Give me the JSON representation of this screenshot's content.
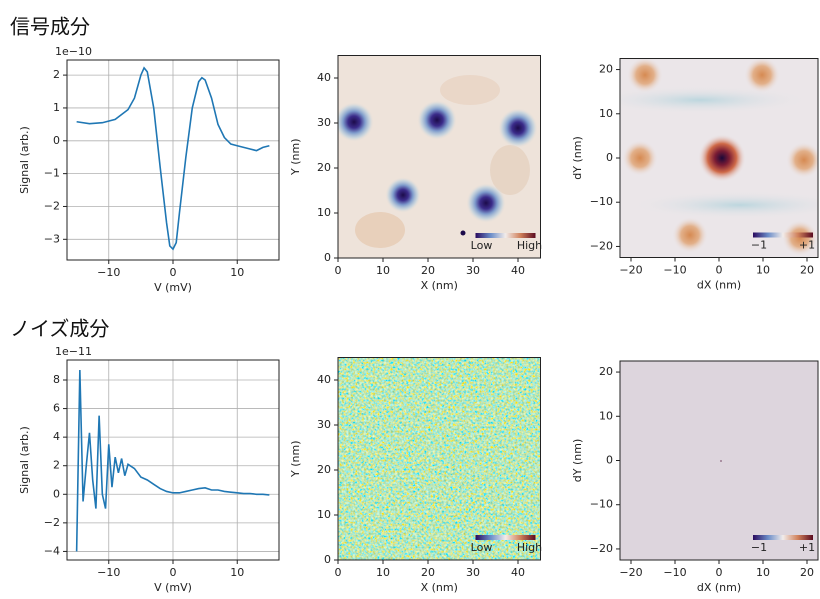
{
  "section_titles": [
    "信号成分",
    "ノイズ成分"
  ],
  "chart_data": [
    {
      "type": "line",
      "xlabel": "V (mV)",
      "ylabel": "Signal (arb.)",
      "offset_label": "1e−10",
      "color": "#1f77b4",
      "grid": true,
      "x": [
        -15,
        -13,
        -11,
        -9,
        -7,
        -6,
        -5,
        -4.5,
        -4,
        -3,
        -2,
        -1,
        -0.5,
        0,
        0.5,
        1,
        2,
        3,
        4,
        4.5,
        5,
        6,
        7,
        8,
        9,
        10,
        11,
        12,
        13,
        14,
        15
      ],
      "values": [
        0.58,
        0.52,
        0.55,
        0.65,
        0.95,
        1.3,
        2.0,
        2.22,
        2.1,
        1.0,
        -0.8,
        -2.5,
        -3.2,
        -3.3,
        -3.1,
        -2.2,
        -0.5,
        1.0,
        1.8,
        1.92,
        1.85,
        1.3,
        0.5,
        0.1,
        -0.1,
        -0.15,
        -0.2,
        -0.25,
        -0.3,
        -0.2,
        -0.15
      ],
      "xlim": [
        -16.5,
        16.5
      ],
      "ylim": [
        -3.63,
        2.46
      ],
      "xticks": [
        {
          "value": -10,
          "label": "−10"
        },
        0,
        10
      ],
      "yticks": [
        {
          "value": -3,
          "label": "−3"
        },
        {
          "value": -2,
          "label": "−2"
        },
        {
          "value": -1,
          "label": "−1"
        },
        0,
        1,
        2
      ]
    },
    {
      "type": "heatmap",
      "xlabel": "X (nm)",
      "ylabel": "Y (nm)",
      "colorbar_labels": [
        "Low",
        "High"
      ],
      "xlim": [
        0,
        45
      ],
      "ylim": [
        0,
        45
      ],
      "xticks": [
        0,
        10,
        20,
        30,
        40
      ],
      "yticks": [
        0,
        10,
        20,
        30,
        40
      ]
    },
    {
      "type": "heatmap",
      "xlabel": "dX (nm)",
      "ylabel": "dY (nm)",
      "colorbar_labels": [
        "−1",
        "+1"
      ],
      "xlim": [
        -22.5,
        22.5
      ],
      "ylim": [
        -22.5,
        22.5
      ],
      "xticks": [
        {
          "value": -20,
          "label": "−20"
        },
        {
          "value": -10,
          "label": "−10"
        },
        0,
        10,
        20
      ],
      "yticks": [
        {
          "value": -20,
          "label": "−20"
        },
        {
          "value": -10,
          "label": "−10"
        },
        0,
        10,
        20
      ]
    },
    {
      "type": "line",
      "xlabel": "V (mV)",
      "ylabel": "Signal (arb.)",
      "offset_label": "1e−11",
      "color": "#1f77b4",
      "grid": true,
      "x": [
        -15,
        -14.5,
        -14,
        -13.5,
        -13,
        -12.5,
        -12,
        -11.5,
        -11,
        -10.5,
        -10,
        -9.5,
        -9,
        -8.5,
        -8,
        -7.5,
        -7,
        -6,
        -5,
        -4,
        -3,
        -2,
        -1,
        0,
        1,
        2,
        3,
        4,
        5,
        6,
        7,
        8,
        9,
        10,
        11,
        12,
        13,
        14,
        15
      ],
      "values": [
        -4.0,
        8.7,
        -0.5,
        2.0,
        4.3,
        1.0,
        -1.0,
        5.5,
        0.0,
        -1.0,
        3.5,
        0.5,
        2.6,
        1.5,
        2.5,
        1.3,
        2.1,
        1.8,
        1.2,
        1.0,
        0.7,
        0.4,
        0.2,
        0.1,
        0.1,
        0.2,
        0.3,
        0.4,
        0.45,
        0.3,
        0.3,
        0.2,
        0.15,
        0.1,
        0.05,
        0.05,
        0.0,
        0.0,
        -0.05
      ],
      "xlim": [
        -16.5,
        16.5
      ],
      "ylim": [
        -4.6,
        9.4
      ],
      "xticks": [
        {
          "value": -10,
          "label": "−10"
        },
        0,
        10
      ],
      "yticks": [
        {
          "value": -4,
          "label": "−4"
        },
        {
          "value": -2,
          "label": "−2"
        },
        0,
        2,
        4,
        6,
        8
      ]
    },
    {
      "type": "heatmap",
      "xlabel": "X (nm)",
      "ylabel": "Y (nm)",
      "colorbar_labels": [
        "Low",
        "High"
      ],
      "xlim": [
        0,
        45
      ],
      "ylim": [
        0,
        45
      ],
      "xticks": [
        0,
        10,
        20,
        30,
        40
      ],
      "yticks": [
        0,
        10,
        20,
        30,
        40
      ]
    },
    {
      "type": "heatmap",
      "xlabel": "dX (nm)",
      "ylabel": "dY (nm)",
      "colorbar_labels": [
        "−1",
        "+1"
      ],
      "xlim": [
        -22.5,
        22.5
      ],
      "ylim": [
        -22.5,
        22.5
      ],
      "xticks": [
        {
          "value": -20,
          "label": "−20"
        },
        {
          "value": -10,
          "label": "−10"
        },
        0,
        10,
        20
      ],
      "yticks": [
        {
          "value": -20,
          "label": "−20"
        },
        {
          "value": -10,
          "label": "−10"
        },
        0,
        10,
        20
      ]
    }
  ]
}
